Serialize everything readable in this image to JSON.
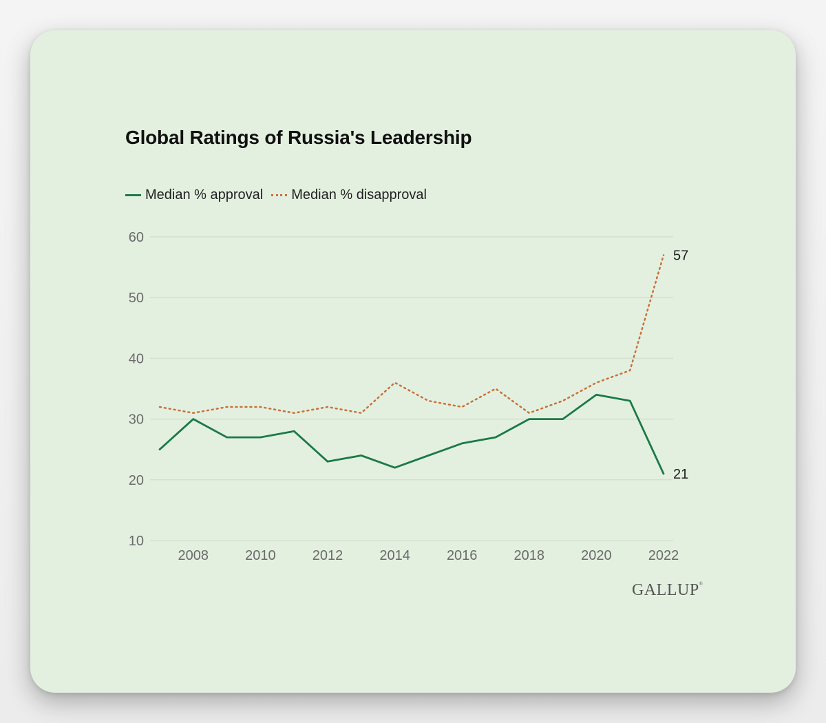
{
  "chart_data": {
    "type": "line",
    "title": "Global Ratings of Russia's Leadership",
    "xlabel": "",
    "ylabel": "",
    "x": [
      2007,
      2008,
      2009,
      2010,
      2011,
      2012,
      2013,
      2014,
      2015,
      2016,
      2017,
      2018,
      2019,
      2020,
      2021,
      2022
    ],
    "series": [
      {
        "name": "Median % approval",
        "color": "#1a7a45",
        "style": "solid",
        "values": [
          25,
          30,
          27,
          27,
          28,
          23,
          24,
          22,
          24,
          26,
          27,
          30,
          30,
          34,
          33,
          21
        ]
      },
      {
        "name": "Median % disapproval",
        "color": "#c8703a",
        "style": "dotted",
        "values": [
          32,
          31,
          32,
          32,
          31,
          32,
          31,
          36,
          33,
          32,
          35,
          31,
          33,
          36,
          38,
          57
        ]
      }
    ],
    "xlim": [
      2007,
      2022
    ],
    "ylim": [
      10,
      60
    ],
    "yticks": [
      "10",
      "20",
      "30",
      "40",
      "50",
      "60"
    ],
    "xticks": [
      "2008",
      "2010",
      "2012",
      "2014",
      "2016",
      "2018",
      "2020",
      "2022"
    ],
    "end_labels": [
      "57",
      "21"
    ],
    "grid": true,
    "legend_position": "top-left"
  },
  "brand": {
    "logo_text": "GALLUP",
    "logo_mark": "®"
  },
  "colors": {
    "card_background": "#e3f0e0",
    "gridline": "#d3dfd0"
  }
}
